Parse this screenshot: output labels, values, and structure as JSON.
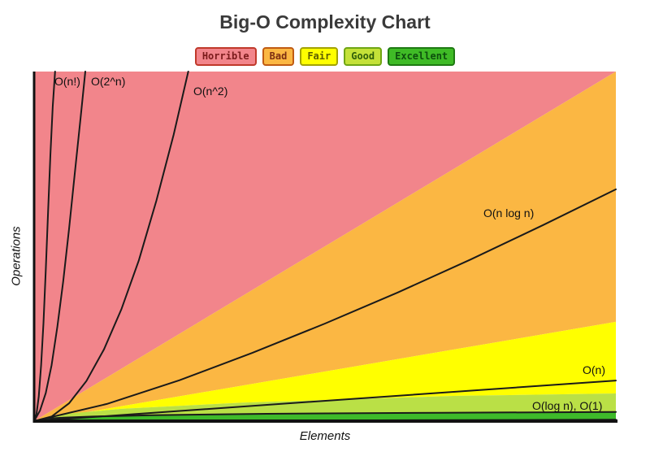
{
  "chart_data": {
    "type": "line",
    "title": "Big-O Complexity Chart",
    "xlabel": "Elements",
    "ylabel": "Operations",
    "axes": {
      "x_ticks": "none",
      "y_ticks": "none",
      "grid": false
    },
    "legend_position": "top",
    "curve_color": "#1a1a1a",
    "curve_labels": {
      "nfact": "O(n!)",
      "two_n": "O(2^n)",
      "nsq": "O(n^2)",
      "nlogn": "O(n log n)",
      "n": "O(n)",
      "logn_one": "O(log n), O(1)"
    },
    "series": [
      {
        "id": "nfact",
        "name": "O(n!)",
        "points": [
          [
            0,
            0
          ],
          [
            0.004,
            0.02
          ],
          [
            0.008,
            0.07
          ],
          [
            0.012,
            0.16
          ],
          [
            0.016,
            0.28
          ],
          [
            0.02,
            0.43
          ],
          [
            0.024,
            0.6
          ],
          [
            0.028,
            0.76
          ],
          [
            0.032,
            0.9
          ],
          [
            0.036,
            1
          ]
        ]
      },
      {
        "id": "two_n",
        "name": "O(2^n)",
        "points": [
          [
            0,
            0
          ],
          [
            0.01,
            0.03
          ],
          [
            0.02,
            0.08
          ],
          [
            0.03,
            0.16
          ],
          [
            0.04,
            0.27
          ],
          [
            0.05,
            0.4
          ],
          [
            0.06,
            0.55
          ],
          [
            0.07,
            0.71
          ],
          [
            0.08,
            0.87
          ],
          [
            0.088,
            1
          ]
        ]
      },
      {
        "id": "nsq",
        "name": "O(n^2)",
        "points": [
          [
            0,
            0
          ],
          [
            0.03,
            0.013
          ],
          [
            0.06,
            0.051
          ],
          [
            0.09,
            0.115
          ],
          [
            0.12,
            0.205
          ],
          [
            0.15,
            0.32
          ],
          [
            0.18,
            0.46
          ],
          [
            0.21,
            0.63
          ],
          [
            0.24,
            0.82
          ],
          [
            0.265,
            1
          ]
        ]
      },
      {
        "id": "nlogn",
        "name": "O(n log n)",
        "points": [
          [
            0,
            0
          ],
          [
            0.125,
            0.049
          ],
          [
            0.25,
            0.117
          ],
          [
            0.375,
            0.195
          ],
          [
            0.5,
            0.279
          ],
          [
            0.625,
            0.368
          ],
          [
            0.75,
            0.462
          ],
          [
            0.875,
            0.561
          ],
          [
            1,
            0.663
          ]
        ]
      },
      {
        "id": "n",
        "name": "O(n)",
        "points": [
          [
            0,
            0
          ],
          [
            1,
            0.116
          ]
        ]
      },
      {
        "id": "logn",
        "name": "O(log n)",
        "points": [
          [
            0,
            0
          ],
          [
            0.02,
            0.007
          ],
          [
            0.05,
            0.01
          ],
          [
            0.1,
            0.013
          ],
          [
            0.2,
            0.017
          ],
          [
            0.4,
            0.021
          ],
          [
            0.7,
            0.024
          ],
          [
            1,
            0.026
          ]
        ]
      },
      {
        "id": "one",
        "name": "O(1)",
        "points": [
          [
            0,
            0
          ],
          [
            1,
            0.004
          ]
        ]
      }
    ],
    "regions": [
      {
        "name": "horrible",
        "color": "#F2858B",
        "lower": [
          [
            0,
            0
          ],
          [
            1,
            1
          ]
        ],
        "upper": [
          [
            0,
            1
          ],
          [
            1,
            1
          ]
        ]
      },
      {
        "name": "bad",
        "color": "#FBB743",
        "lower": [
          [
            0,
            0
          ],
          [
            1,
            0.284
          ]
        ],
        "upper": [
          [
            0,
            0
          ],
          [
            1,
            1
          ]
        ]
      },
      {
        "name": "fair",
        "color": "#FFFF00",
        "lower": [
          [
            0,
            0
          ],
          [
            0.05,
            0.02
          ],
          [
            0.15,
            0.035
          ],
          [
            0.36,
            0.053
          ],
          [
            0.72,
            0.072
          ],
          [
            1,
            0.079
          ]
        ],
        "upper": [
          [
            0,
            0
          ],
          [
            1,
            0.284
          ]
        ]
      },
      {
        "name": "good",
        "color": "#BAE046",
        "lower": [
          [
            0,
            0
          ],
          [
            0.02,
            0.008
          ],
          [
            0.05,
            0.011
          ],
          [
            0.1,
            0.014
          ],
          [
            0.2,
            0.018
          ],
          [
            0.4,
            0.022
          ],
          [
            0.7,
            0.025
          ],
          [
            1,
            0.028
          ]
        ],
        "upper": [
          [
            0,
            0
          ],
          [
            0.05,
            0.02
          ],
          [
            0.15,
            0.035
          ],
          [
            0.36,
            0.053
          ],
          [
            0.72,
            0.072
          ],
          [
            1,
            0.079
          ]
        ]
      },
      {
        "name": "excellent",
        "color": "#3EBA2A",
        "lower": [
          [
            0,
            0
          ],
          [
            1,
            0.001
          ]
        ],
        "upper": [
          [
            0,
            0
          ],
          [
            0.02,
            0.008
          ],
          [
            0.05,
            0.011
          ],
          [
            0.1,
            0.014
          ],
          [
            0.2,
            0.018
          ],
          [
            0.4,
            0.022
          ],
          [
            0.7,
            0.025
          ],
          [
            1,
            0.028
          ]
        ]
      }
    ]
  },
  "legend": {
    "items": [
      {
        "id": "horrible",
        "label": "Horrible",
        "bg": "#F2858B",
        "border": "#C0392B",
        "text_color": "#7B1B1B"
      },
      {
        "id": "bad",
        "label": "Bad",
        "bg": "#FBB743",
        "border": "#C05B12",
        "text_color": "#7C2D12"
      },
      {
        "id": "fair",
        "label": "Fair",
        "bg": "#FFFF00",
        "border": "#A3A300",
        "text_color": "#5C5C00"
      },
      {
        "id": "good",
        "label": "Good",
        "bg": "#C4E138",
        "border": "#6FA514",
        "text_color": "#2F5E0A"
      },
      {
        "id": "excellent",
        "label": "Excellent",
        "bg": "#3FBB26",
        "border": "#1E7A12",
        "text_color": "#0D4F0D"
      }
    ]
  }
}
